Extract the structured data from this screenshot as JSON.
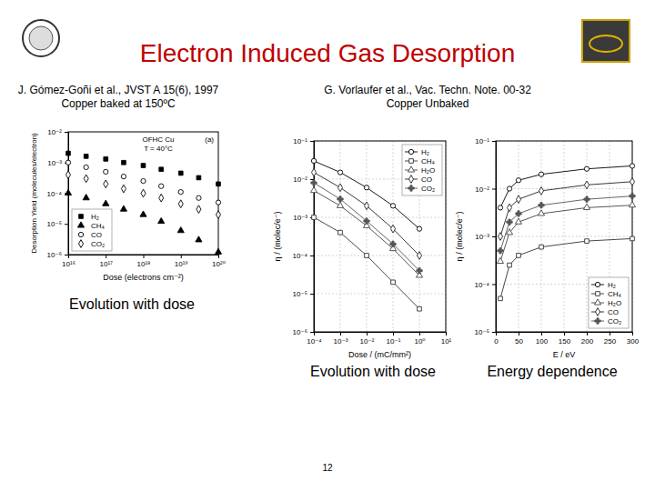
{
  "slide": {
    "title": "Electron Induced Gas Desorption",
    "references": [
      {
        "author": "J. Gómez-Goñi et al., JVST A 15(6), 1997",
        "note": "Copper baked at 150ºC"
      },
      {
        "author": "G. Vorlaufer et al., Vac. Techn. Note. 00-32",
        "note": "Copper Unbaked"
      }
    ],
    "captions": [
      "Evolution with dose",
      "Evolution with dose",
      "Energy dependence"
    ],
    "page": "12"
  },
  "chart_data": [
    {
      "type": "scatter",
      "x_label": "Dose (electrons cm⁻²)",
      "y_label": "Desorption Yield (molecules/electron)",
      "annotations": [
        "OFHC Cu",
        "T = 40°C",
        "(a)"
      ],
      "log": true,
      "grid": false,
      "legend": "lower left",
      "xlim": [
        1e+16,
        1e+20
      ],
      "xticks": [
        {
          "value": 1e+16,
          "label": "10¹⁶"
        },
        {
          "value": 1e+17,
          "label": "10¹⁷"
        },
        {
          "value": 1e+18,
          "label": "10¹⁸"
        },
        {
          "value": 1e+19,
          "label": "10¹⁹"
        },
        {
          "value": 1e+20,
          "label": "10²⁰"
        }
      ],
      "ylim": [
        1e-06,
        0.01
      ],
      "yticks": [
        {
          "value": 1e-06,
          "label": "10⁻⁶"
        },
        {
          "value": 1e-05,
          "label": "10⁻⁵"
        },
        {
          "value": 0.0001,
          "label": "10⁻⁴"
        },
        {
          "value": 0.001,
          "label": "10⁻³"
        },
        {
          "value": 0.01,
          "label": "10⁻²"
        }
      ],
      "x": [
        1e+16,
        3e+16,
        1e+17,
        3e+17,
        1e+18,
        3e+18,
        1e+19,
        3e+19,
        1e+20
      ],
      "series": [
        {
          "name": "H₂",
          "color": "#000000",
          "marker": "square",
          "values": [
            0.002,
            0.0016,
            0.0013,
            0.001,
            0.0008,
            0.0006,
            0.00045,
            0.00032,
            0.0002
          ]
        },
        {
          "name": "CH₄",
          "color": "#000000",
          "marker": "triangle",
          "values": [
            0.0001,
            7e-05,
            4.5e-05,
            3e-05,
            2e-05,
            1.2e-05,
            6e-06,
            3e-06,
            1.2e-06
          ]
        },
        {
          "name": "CO",
          "color": "#000000",
          "marker": "circle-open",
          "values": [
            0.001,
            0.0007,
            0.0005,
            0.00035,
            0.00025,
            0.00017,
            0.00011,
            7e-05,
            5e-05
          ]
        },
        {
          "name": "CO₂",
          "color": "#000000",
          "marker": "diamond-open",
          "values": [
            0.0004,
            0.0003,
            0.0002,
            0.00014,
            0.0001,
            7e-05,
            4.5e-05,
            3e-05,
            2e-05
          ]
        }
      ]
    },
    {
      "type": "line",
      "x_label": "Dose / (mC/mm²)",
      "y_label": "η / (molec/e⁻)",
      "log": true,
      "grid": true,
      "legend": "upper right",
      "xlim": [
        0.0001,
        10
      ],
      "xticks": [
        {
          "value": 0.0001,
          "label": "10⁻⁴"
        },
        {
          "value": 0.001,
          "label": "10⁻³"
        },
        {
          "value": 0.01,
          "label": "10⁻²"
        },
        {
          "value": 0.1,
          "label": "10⁻¹"
        },
        {
          "value": 1,
          "label": "10⁰"
        },
        {
          "value": 10,
          "label": "10¹"
        }
      ],
      "ylim": [
        1e-06,
        0.1
      ],
      "yticks": [
        {
          "value": 1e-06,
          "label": "10⁻⁶"
        },
        {
          "value": 1e-05,
          "label": "10⁻⁵"
        },
        {
          "value": 0.0001,
          "label": "10⁻⁴"
        },
        {
          "value": 0.001,
          "label": "10⁻³"
        },
        {
          "value": 0.01,
          "label": "10⁻²"
        },
        {
          "value": 0.1,
          "label": "10⁻¹"
        }
      ],
      "x": [
        0.0001,
        0.001,
        0.01,
        0.1,
        1
      ],
      "series": [
        {
          "name": "H₂",
          "color": "#000000",
          "marker": "circle-open",
          "values": [
            0.03,
            0.015,
            0.006,
            0.002,
            0.0005
          ]
        },
        {
          "name": "CH₄",
          "color": "#333333",
          "marker": "square-open",
          "values": [
            0.001,
            0.0004,
            0.0001,
            2e-05,
            4e-06
          ]
        },
        {
          "name": "H₂O",
          "color": "#444444",
          "marker": "triangle-open",
          "values": [
            0.005,
            0.002,
            0.0006,
            0.00015,
            3e-05
          ]
        },
        {
          "name": "CO",
          "color": "#222222",
          "marker": "diamond-open",
          "values": [
            0.015,
            0.006,
            0.002,
            0.0005,
            0.0001
          ]
        },
        {
          "name": "CO₂",
          "color": "#555555",
          "marker": "cross",
          "values": [
            0.008,
            0.003,
            0.0008,
            0.0002,
            4e-05
          ]
        }
      ]
    },
    {
      "type": "line",
      "x_label": "E / eV",
      "y_label": "η / (molec/e⁻)",
      "log": "y",
      "grid": true,
      "legend": "lower right",
      "xlim": [
        0,
        300
      ],
      "xticks": [
        0,
        50,
        100,
        150,
        200,
        250,
        300
      ],
      "ylim": [
        1e-05,
        0.1
      ],
      "yticks": [
        {
          "value": 1e-05,
          "label": "10⁻⁵"
        },
        {
          "value": 0.0001,
          "label": "10⁻⁴"
        },
        {
          "value": 0.001,
          "label": "10⁻³"
        },
        {
          "value": 0.01,
          "label": "10⁻²"
        },
        {
          "value": 0.1,
          "label": "10⁻¹"
        }
      ],
      "x": [
        10,
        30,
        50,
        100,
        200,
        300
      ],
      "series": [
        {
          "name": "H₂",
          "color": "#000000",
          "marker": "circle-open",
          "values": [
            0.004,
            0.01,
            0.015,
            0.02,
            0.026,
            0.03
          ]
        },
        {
          "name": "CH₄",
          "color": "#333333",
          "marker": "square-open",
          "values": [
            5e-05,
            0.00025,
            0.0004,
            0.0006,
            0.0008,
            0.0009
          ]
        },
        {
          "name": "H₂O",
          "color": "#444444",
          "marker": "triangle-open",
          "values": [
            0.0003,
            0.0012,
            0.002,
            0.003,
            0.004,
            0.0045
          ]
        },
        {
          "name": "CO",
          "color": "#222222",
          "marker": "diamond-open",
          "values": [
            0.001,
            0.004,
            0.006,
            0.009,
            0.012,
            0.014
          ]
        },
        {
          "name": "CO₂",
          "color": "#555555",
          "marker": "cross",
          "values": [
            0.0005,
            0.002,
            0.003,
            0.0045,
            0.006,
            0.007
          ]
        }
      ]
    }
  ]
}
